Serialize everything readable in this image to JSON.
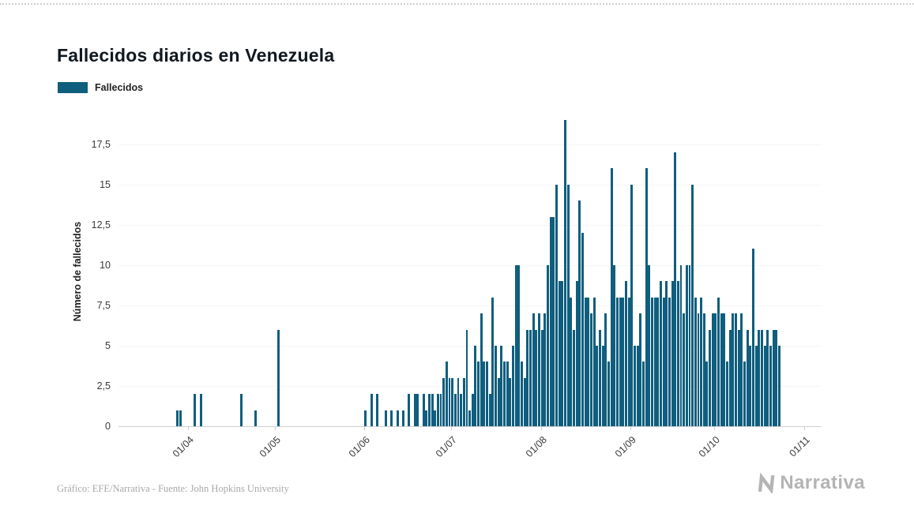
{
  "page": {
    "title": "Fallecidos diarios en Venezuela",
    "footer_credit": "Gráfico: EFE/Narrativa - Fuente: John Hopkins University",
    "brand": "Narrativa"
  },
  "legend": {
    "label": "Fallecidos"
  },
  "colors": {
    "bar": "#0f5e7e",
    "title_text": "#101820",
    "axis_text": "#3a3a3a",
    "gridline": "#f5f5f5",
    "baseline": "#cfcfcf",
    "muted_text": "#a8a8a8",
    "brand_gray": "#b4b4b4"
  },
  "chart_data": {
    "type": "bar",
    "title": "Fallecidos diarios en Venezuela",
    "xlabel": "",
    "ylabel": "Número de fallecidos",
    "series_name": "Fallecidos",
    "start_date": "2020-03-08",
    "date_step_days": 1,
    "ylim": [
      0,
      19.2
    ],
    "grid": false,
    "legend_position": "top-left",
    "y_ticks": [
      {
        "label": "0",
        "value": 0
      },
      {
        "label": "2,5",
        "value": 2.5
      },
      {
        "label": "5",
        "value": 5
      },
      {
        "label": "7,5",
        "value": 7.5
      },
      {
        "label": "10",
        "value": 10
      },
      {
        "label": "12,5",
        "value": 12.5
      },
      {
        "label": "15",
        "value": 15
      },
      {
        "label": "17,5",
        "value": 17.5
      }
    ],
    "x_ticks": [
      {
        "label": "01/04",
        "index": 24
      },
      {
        "label": "01/05",
        "index": 54
      },
      {
        "label": "01/06",
        "index": 85
      },
      {
        "label": "01/07",
        "index": 115
      },
      {
        "label": "01/08",
        "index": 146
      },
      {
        "label": "01/09",
        "index": 177
      },
      {
        "label": "01/10",
        "index": 206
      },
      {
        "label": "01/11",
        "index": 237
      }
    ],
    "values": [
      0,
      0,
      0,
      0,
      0,
      0,
      0,
      0,
      0,
      0,
      0,
      0,
      0,
      0,
      0,
      0,
      0,
      0,
      0,
      0,
      1,
      1,
      0,
      0,
      0,
      0,
      2,
      0,
      2,
      0,
      0,
      0,
      0,
      0,
      0,
      0,
      0,
      0,
      0,
      0,
      0,
      0,
      2,
      0,
      0,
      0,
      0,
      1,
      0,
      0,
      0,
      0,
      0,
      0,
      0,
      6,
      0,
      0,
      0,
      0,
      0,
      0,
      0,
      0,
      0,
      0,
      0,
      0,
      0,
      0,
      0,
      0,
      0,
      0,
      0,
      0,
      0,
      0,
      0,
      0,
      0,
      0,
      0,
      0,
      0,
      1,
      0,
      2,
      0,
      2,
      0,
      0,
      1,
      0,
      1,
      0,
      1,
      0,
      1,
      0,
      2,
      0,
      2,
      2,
      0,
      2,
      1,
      2,
      2,
      1,
      2,
      2,
      3,
      4,
      3,
      3,
      2,
      3,
      2,
      3,
      6,
      1,
      2,
      5,
      4,
      7,
      4,
      4,
      2,
      8,
      5,
      3,
      5,
      4,
      4,
      3,
      5,
      10,
      10,
      4,
      3,
      6,
      6,
      7,
      6,
      7,
      6,
      7,
      10,
      13,
      13,
      15,
      9,
      9,
      19,
      15,
      8,
      6,
      9,
      14,
      12,
      8,
      8,
      7,
      8,
      5,
      6,
      5,
      7,
      4,
      16,
      10,
      8,
      8,
      8,
      9,
      8,
      15,
      5,
      5,
      7,
      4,
      16,
      10,
      8,
      8,
      8,
      9,
      8,
      9,
      8,
      9,
      17,
      9,
      10,
      7,
      10,
      10,
      15,
      8,
      7,
      8,
      7,
      4,
      6,
      7,
      7,
      8,
      7,
      7,
      4,
      6,
      7,
      7,
      6,
      7,
      4,
      6,
      5,
      11,
      5,
      6,
      6,
      5,
      6,
      5,
      6,
      6,
      5,
      0,
      0,
      0,
      0,
      0,
      0,
      0,
      0,
      0,
      0,
      0,
      0,
      0,
      0
    ]
  }
}
